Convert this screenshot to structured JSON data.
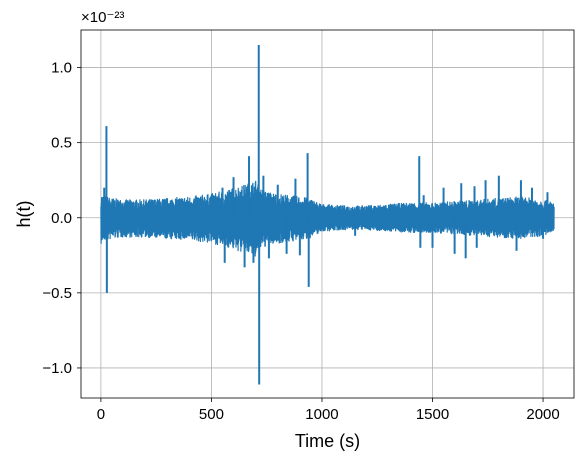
{
  "chart_data": {
    "type": "line",
    "xlabel": "Time (s)",
    "ylabel": "h(t)",
    "y_scale_label": "×10⁻²³",
    "y_scale_factor": 1e-23,
    "xlim": [
      -90,
      2140
    ],
    "ylim": [
      -1.2,
      1.25
    ],
    "x_ticks": [
      0,
      500,
      1000,
      1500,
      2000
    ],
    "x_tick_labels": [
      "0",
      "500",
      "1000",
      "1500",
      "2000"
    ],
    "y_ticks": [
      -1.0,
      -0.5,
      0.0,
      0.5,
      1.0
    ],
    "y_tick_labels": [
      "−1.0",
      "−0.5",
      "0.0",
      "0.5",
      "1.0"
    ],
    "grid": true,
    "series": [
      {
        "color": "#1f77b4",
        "noise_envelope": {
          "x": [
            0,
            10,
            50,
            100,
            200,
            300,
            400,
            500,
            560,
            600,
            650,
            700,
            712,
            720,
            760,
            800,
            850,
            900,
            940,
            1000,
            1100,
            1200,
            1300,
            1400,
            1450,
            1500,
            1600,
            1700,
            1800,
            1900,
            2000,
            2050
          ],
          "upper": [
            0.16,
            0.15,
            0.13,
            0.12,
            0.12,
            0.13,
            0.14,
            0.16,
            0.18,
            0.2,
            0.22,
            0.25,
            0.24,
            0.2,
            0.17,
            0.16,
            0.15,
            0.14,
            0.13,
            0.09,
            0.08,
            0.08,
            0.09,
            0.1,
            0.1,
            0.1,
            0.11,
            0.12,
            0.13,
            0.14,
            0.12,
            0.1
          ],
          "lower": [
            -0.18,
            -0.16,
            -0.14,
            -0.13,
            -0.13,
            -0.14,
            -0.15,
            -0.17,
            -0.19,
            -0.21,
            -0.24,
            -0.26,
            -0.25,
            -0.21,
            -0.18,
            -0.17,
            -0.16,
            -0.15,
            -0.14,
            -0.09,
            -0.08,
            -0.08,
            -0.09,
            -0.1,
            -0.1,
            -0.1,
            -0.11,
            -0.12,
            -0.13,
            -0.14,
            -0.12,
            -0.1
          ]
        },
        "spikes": [
          {
            "x": 25,
            "y": 0.61
          },
          {
            "x": 27,
            "y": -0.5
          },
          {
            "x": 15,
            "y": 0.2
          },
          {
            "x": 550,
            "y": 0.2
          },
          {
            "x": 560,
            "y": -0.3
          },
          {
            "x": 600,
            "y": 0.27
          },
          {
            "x": 650,
            "y": -0.33
          },
          {
            "x": 670,
            "y": 0.41
          },
          {
            "x": 690,
            "y": -0.3
          },
          {
            "x": 714,
            "y": 1.15
          },
          {
            "x": 716,
            "y": -1.11
          },
          {
            "x": 735,
            "y": 0.28
          },
          {
            "x": 760,
            "y": -0.27
          },
          {
            "x": 800,
            "y": 0.22
          },
          {
            "x": 840,
            "y": -0.24
          },
          {
            "x": 880,
            "y": 0.26
          },
          {
            "x": 900,
            "y": -0.25
          },
          {
            "x": 935,
            "y": 0.43
          },
          {
            "x": 940,
            "y": -0.46
          },
          {
            "x": 1150,
            "y": -0.12
          },
          {
            "x": 1440,
            "y": 0.41
          },
          {
            "x": 1445,
            "y": -0.2
          },
          {
            "x": 1460,
            "y": 0.15
          },
          {
            "x": 1500,
            "y": -0.2
          },
          {
            "x": 1550,
            "y": 0.2
          },
          {
            "x": 1600,
            "y": -0.24
          },
          {
            "x": 1630,
            "y": 0.23
          },
          {
            "x": 1650,
            "y": -0.27
          },
          {
            "x": 1690,
            "y": 0.21
          },
          {
            "x": 1700,
            "y": -0.2
          },
          {
            "x": 1740,
            "y": 0.25
          },
          {
            "x": 1800,
            "y": 0.28
          },
          {
            "x": 1880,
            "y": -0.22
          },
          {
            "x": 1900,
            "y": 0.25
          },
          {
            "x": 1950,
            "y": 0.2
          },
          {
            "x": 2000,
            "y": -0.14
          },
          {
            "x": 2020,
            "y": 0.17
          }
        ]
      }
    ]
  }
}
